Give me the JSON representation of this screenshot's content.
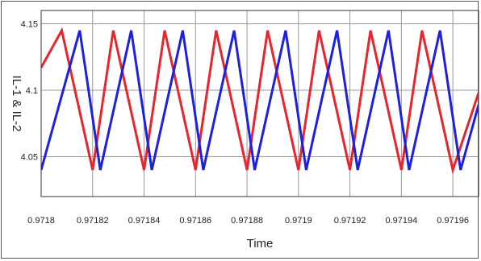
{
  "chart_data": {
    "type": "line",
    "title": "",
    "xlabel": "Time",
    "ylabel": "IL-1 & IL-2",
    "xlim": [
      0.9718,
      0.97197
    ],
    "ylim": [
      4.02,
      4.16
    ],
    "grid": true,
    "x_ticks": [
      0.9718,
      0.97182,
      0.97184,
      0.97186,
      0.97188,
      0.9719,
      0.97192,
      0.97194,
      0.97196
    ],
    "x_tick_labels": [
      "0.9718",
      "0.97182",
      "0.97184",
      "0.97186",
      "0.97188",
      "0.9719",
      "0.97192",
      "0.97194",
      "0.97196"
    ],
    "y_ticks": [
      4.05,
      4.1,
      4.15
    ],
    "y_tick_labels": [
      "4.05",
      "4.1",
      "4.15"
    ],
    "series": [
      {
        "color": "#e8242c",
        "x": [
          0.9718,
          0.971808,
          0.97182,
          0.971828,
          0.97184,
          0.971848,
          0.97186,
          0.971868,
          0.97188,
          0.971888,
          0.9719,
          0.971908,
          0.97192,
          0.971928,
          0.97194,
          0.971948,
          0.97196,
          0.97197
        ],
        "y": [
          4.117,
          4.145,
          4.04,
          4.145,
          4.04,
          4.145,
          4.04,
          4.145,
          4.04,
          4.145,
          4.04,
          4.145,
          4.04,
          4.145,
          4.04,
          4.145,
          4.04,
          4.098
        ]
      },
      {
        "color": "#1c20e0",
        "x": [
          0.9718,
          0.971815,
          0.971823,
          0.971835,
          0.971843,
          0.971855,
          0.971863,
          0.971875,
          0.971883,
          0.971895,
          0.971903,
          0.971915,
          0.971923,
          0.971935,
          0.971943,
          0.971955,
          0.971963,
          0.97197
        ],
        "y": [
          4.04,
          4.145,
          4.04,
          4.145,
          4.04,
          4.145,
          4.04,
          4.145,
          4.04,
          4.145,
          4.04,
          4.145,
          4.04,
          4.145,
          4.04,
          4.145,
          4.04,
          4.089
        ]
      }
    ]
  }
}
